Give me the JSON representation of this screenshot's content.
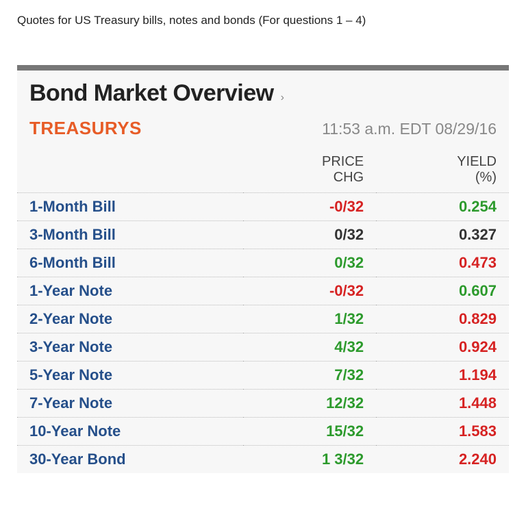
{
  "caption": "Quotes for US Treasury bills, notes and bonds (For questions 1 – 4)",
  "panel": {
    "heading": "Bond Market Overview",
    "subTitle": "TREASURYS",
    "timestamp": "11:53 a.m. EDT 08/29/16",
    "columns": {
      "c0": "",
      "c1": "PRICE CHG",
      "c2": "YIELD (%)"
    },
    "colors": {
      "neg": "#d62222",
      "pos": "#2c9a2c",
      "neu": "#333333",
      "instrument": "#254f8a",
      "accent": "#e75c27",
      "border_top": "#777777",
      "panel_bg": "#f7f7f7"
    },
    "rows": [
      {
        "name": "1-Month Bill",
        "chg": "-0/32",
        "chgClass": "neg",
        "yield": "0.254",
        "yieldClass": "pos"
      },
      {
        "name": "3-Month Bill",
        "chg": "0/32",
        "chgClass": "neu",
        "yield": "0.327",
        "yieldClass": "neu"
      },
      {
        "name": "6-Month Bill",
        "chg": "0/32",
        "chgClass": "pos",
        "yield": "0.473",
        "yieldClass": "neg"
      },
      {
        "name": "1-Year Note",
        "chg": "-0/32",
        "chgClass": "neg",
        "yield": "0.607",
        "yieldClass": "pos"
      },
      {
        "name": "2-Year Note",
        "chg": "1/32",
        "chgClass": "pos",
        "yield": "0.829",
        "yieldClass": "neg"
      },
      {
        "name": "3-Year Note",
        "chg": "4/32",
        "chgClass": "pos",
        "yield": "0.924",
        "yieldClass": "neg"
      },
      {
        "name": "5-Year Note",
        "chg": "7/32",
        "chgClass": "pos",
        "yield": "1.194",
        "yieldClass": "neg"
      },
      {
        "name": "7-Year Note",
        "chg": "12/32",
        "chgClass": "pos",
        "yield": "1.448",
        "yieldClass": "neg"
      },
      {
        "name": "10-Year Note",
        "chg": "15/32",
        "chgClass": "pos",
        "yield": "1.583",
        "yieldClass": "neg"
      },
      {
        "name": "30-Year Bond",
        "chg": "1 3/32",
        "chgClass": "pos",
        "yield": "2.240",
        "yieldClass": "neg"
      }
    ]
  }
}
